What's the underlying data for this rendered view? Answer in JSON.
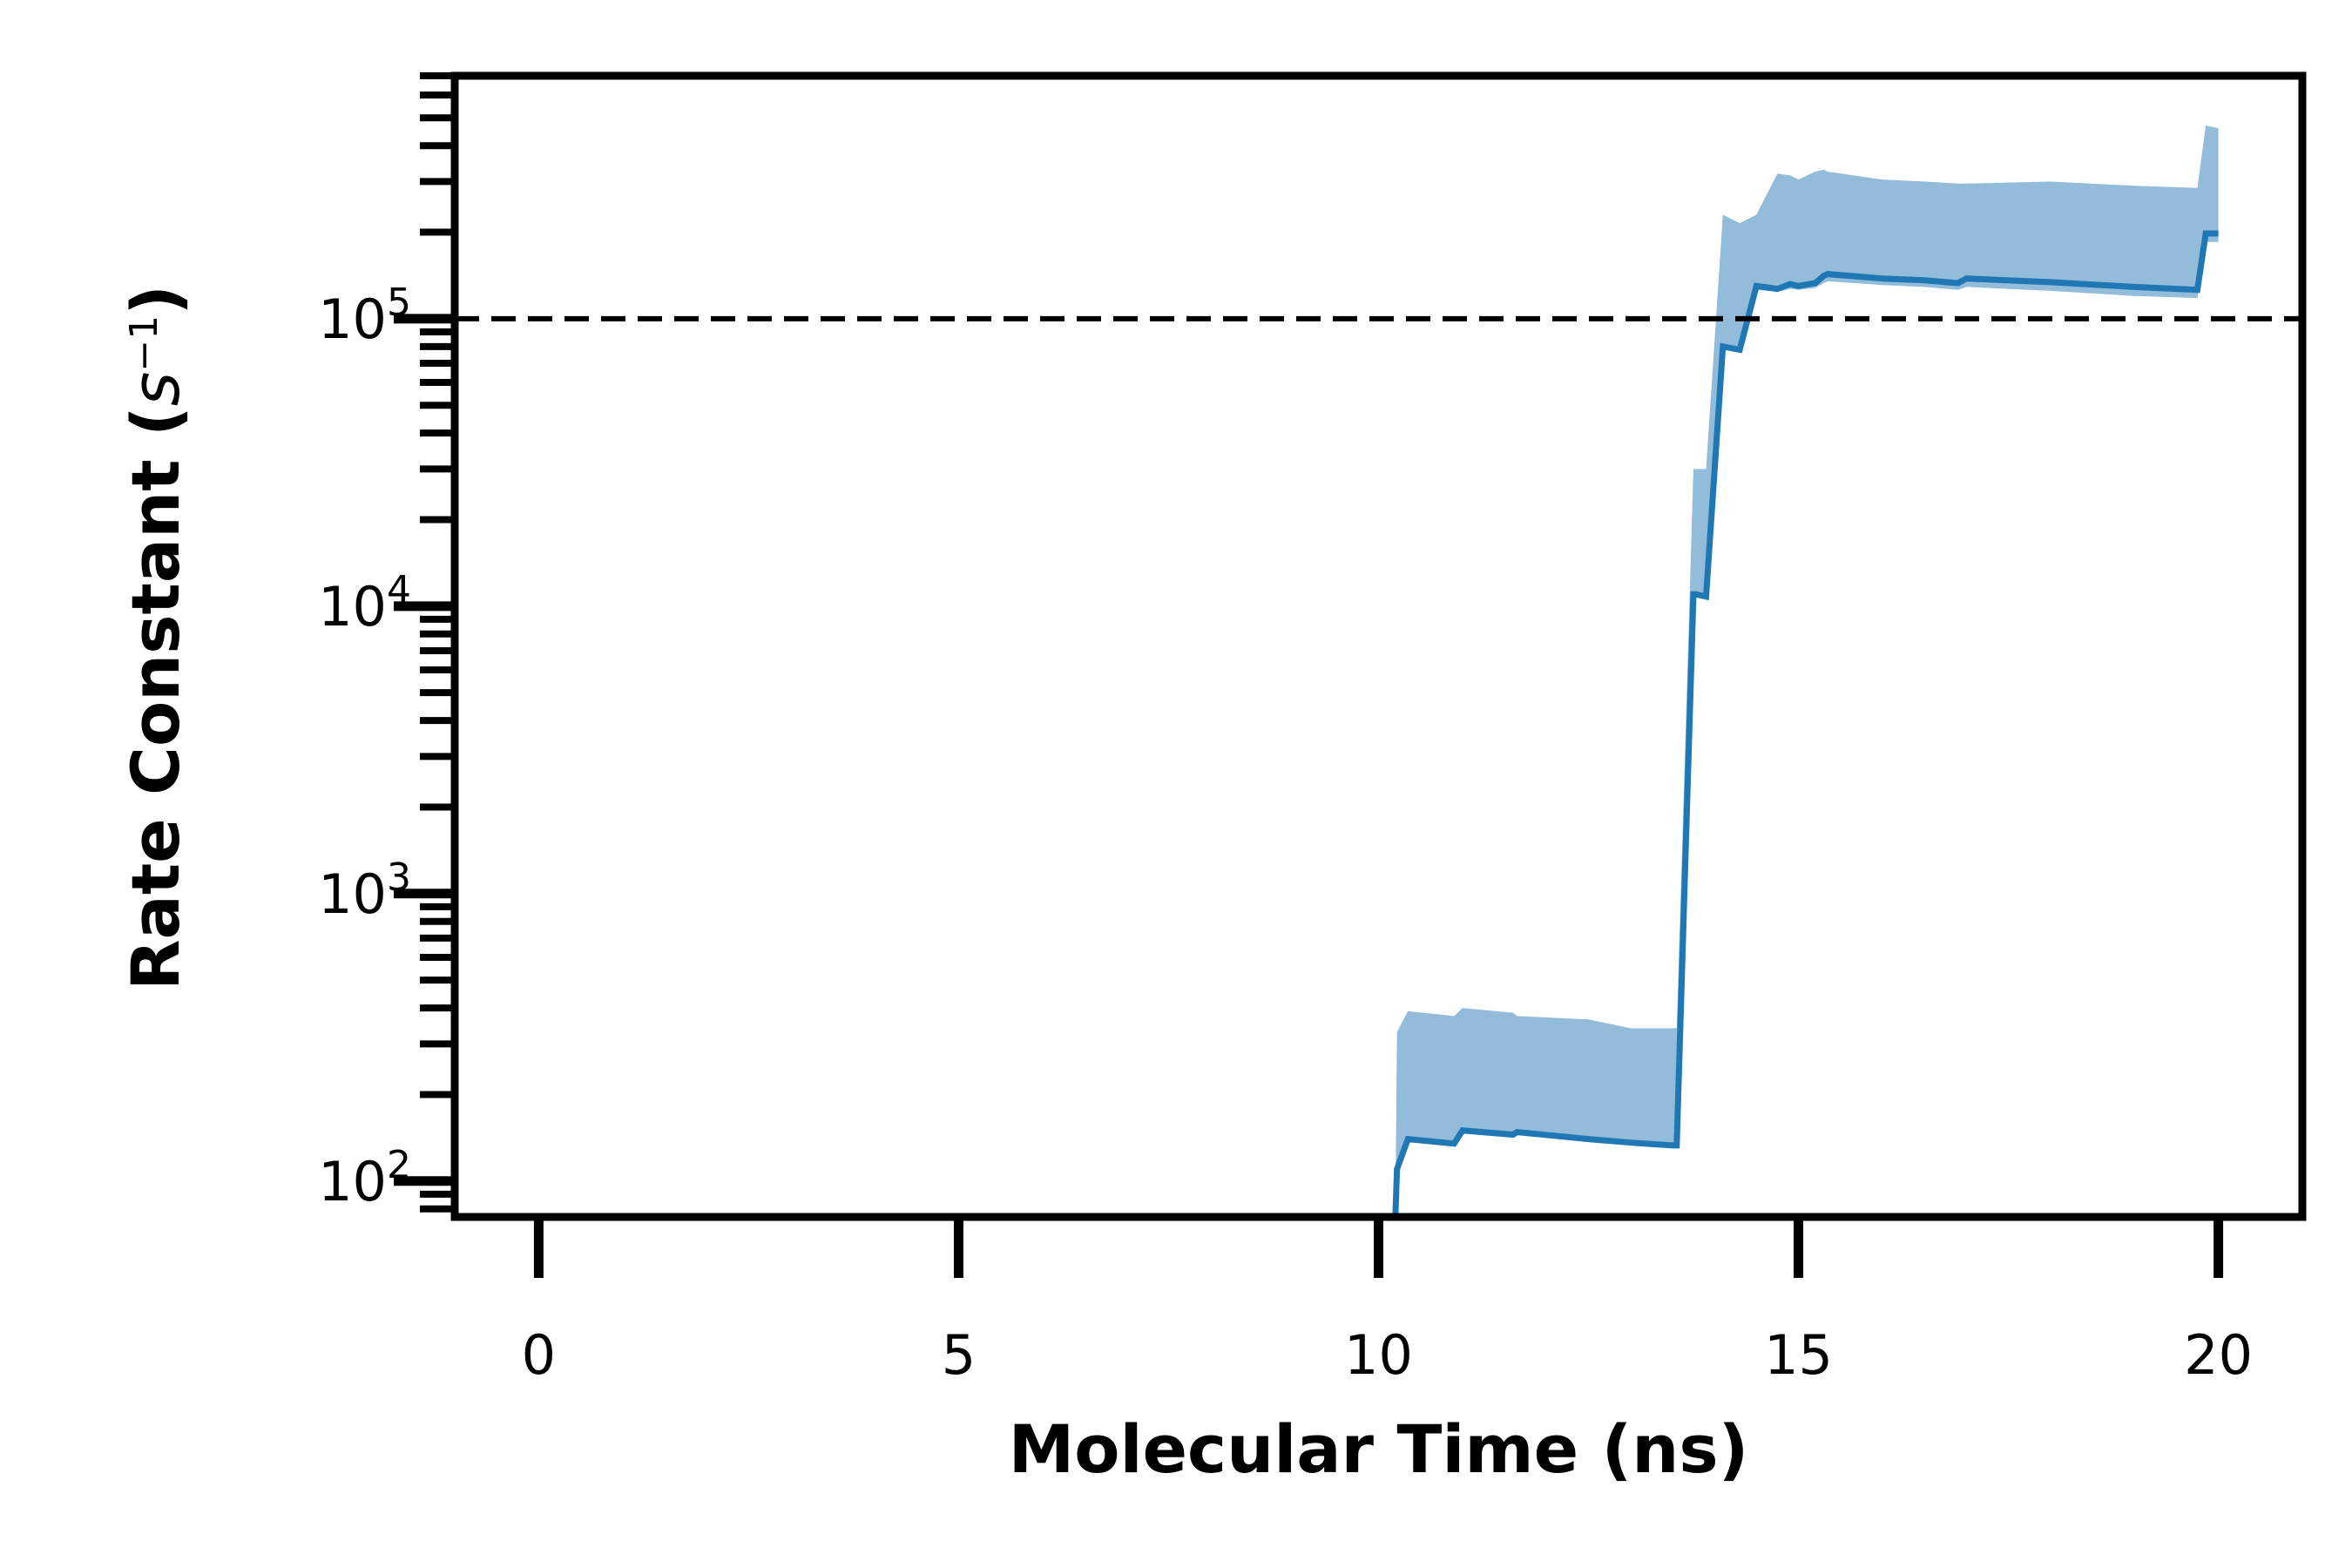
{
  "chart_data": {
    "type": "line",
    "xlabel": "Molecular Time (ns)",
    "ylabel_main": "Rate Constant (",
    "ylabel_unit_base": "s",
    "ylabel_unit_exp": "−1",
    "ylabel_close": ")",
    "xlim": [
      -1,
      21
    ],
    "ylim": [
      75,
      700000
    ],
    "yscale": "log",
    "x_ticks": [
      0,
      5,
      10,
      15,
      20
    ],
    "x_tick_labels": [
      "0",
      "5",
      "10",
      "15",
      "20"
    ],
    "y_ticks": [
      100,
      1000,
      10000,
      100000
    ],
    "y_tick_labels": [
      {
        "base": "10",
        "exp": "2"
      },
      {
        "base": "10",
        "exp": "3"
      },
      {
        "base": "10",
        "exp": "4"
      },
      {
        "base": "10",
        "exp": "5"
      }
    ],
    "reference_line": {
      "y": 100000,
      "style": "dashed",
      "color": "#000000"
    },
    "colors": {
      "line": "#1f77b4",
      "band": "#93bcda",
      "axes": "#000000"
    },
    "grid": false,
    "series": [
      {
        "x": [
          10.2,
          10.22,
          10.35,
          10.9,
          11.0,
          11.6,
          11.65,
          12.5,
          13.0,
          13.5,
          13.55,
          13.75,
          13.78,
          13.9,
          14.1,
          14.3,
          14.5,
          14.75,
          14.9,
          15.0,
          15.2,
          15.3,
          15.35,
          16.0,
          16.5,
          16.9,
          17.0,
          18.0,
          19.0,
          19.75,
          19.85,
          20.0
        ],
        "y": [
          75,
          110,
          140,
          135,
          150,
          145,
          148,
          140,
          136,
          133,
          133,
          11000,
          11000,
          10800,
          80000,
          78000,
          130000,
          127000,
          132000,
          130000,
          133000,
          141000,
          143000,
          138000,
          136000,
          133000,
          138000,
          134000,
          129000,
          126000,
          198000,
          198000
        ],
        "band_upper": [
          75,
          330,
          390,
          375,
          400,
          385,
          375,
          365,
          340,
          340,
          340,
          30000,
          30000,
          30000,
          230000,
          215000,
          230000,
          320000,
          315000,
          305000,
          325000,
          330000,
          325000,
          305000,
          300000,
          295000,
          295000,
          300000,
          290000,
          285000,
          470000,
          460000
        ],
        "band_lower": [
          75,
          110,
          140,
          135,
          150,
          145,
          148,
          140,
          136,
          133,
          133,
          11000,
          11000,
          10800,
          80000,
          78000,
          126000,
          124000,
          127000,
          126000,
          128000,
          133000,
          135000,
          131000,
          129000,
          126000,
          129000,
          125000,
          120000,
          118000,
          185000,
          185000
        ]
      }
    ]
  }
}
